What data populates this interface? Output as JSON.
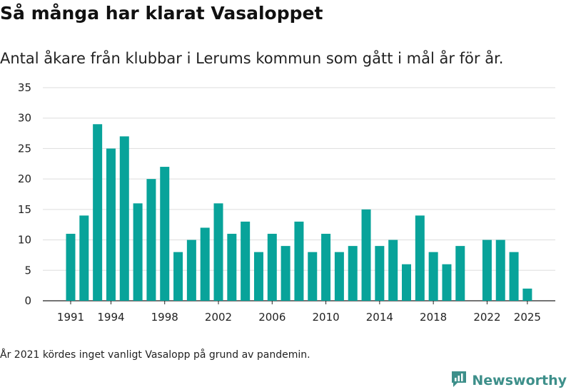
{
  "header": {
    "title": "Så många har klarat Vasaloppet",
    "subtitle": "Antal åkare från klubbar i Lerums kommun som gått i mål år för år."
  },
  "footer": {
    "note": "År 2021 kördes inget vanligt Vasalopp på grund av pandemin.",
    "brand": "Newsworthy",
    "brand_icon": "newsworthy-logo-icon"
  },
  "colors": {
    "bar": "#08a39a",
    "grid": "#dddddd",
    "brand": "#3d8f8a"
  },
  "chart_data": {
    "type": "bar",
    "title": "Så många har klarat Vasaloppet",
    "subtitle": "Antal åkare från klubbar i Lerums kommun som gått i mål år för år.",
    "xlabel": "",
    "ylabel": "",
    "ylim": [
      0,
      35
    ],
    "yticks": [
      0,
      5,
      10,
      15,
      20,
      25,
      30,
      35
    ],
    "xticks": [
      1991,
      1994,
      1998,
      2002,
      2006,
      2010,
      2014,
      2018,
      2022,
      2025
    ],
    "grid": true,
    "categories": [
      1991,
      1992,
      1993,
      1994,
      1995,
      1996,
      1997,
      1998,
      1999,
      2000,
      2001,
      2002,
      2003,
      2004,
      2005,
      2006,
      2007,
      2008,
      2009,
      2010,
      2011,
      2012,
      2013,
      2014,
      2015,
      2016,
      2017,
      2018,
      2019,
      2020,
      2021,
      2022,
      2023,
      2024,
      2025
    ],
    "values": [
      11,
      14,
      29,
      25,
      27,
      16,
      20,
      22,
      8,
      10,
      12,
      16,
      11,
      13,
      8,
      11,
      9,
      13,
      8,
      11,
      8,
      9,
      15,
      9,
      10,
      6,
      14,
      8,
      6,
      9,
      null,
      10,
      10,
      8,
      2
    ]
  }
}
